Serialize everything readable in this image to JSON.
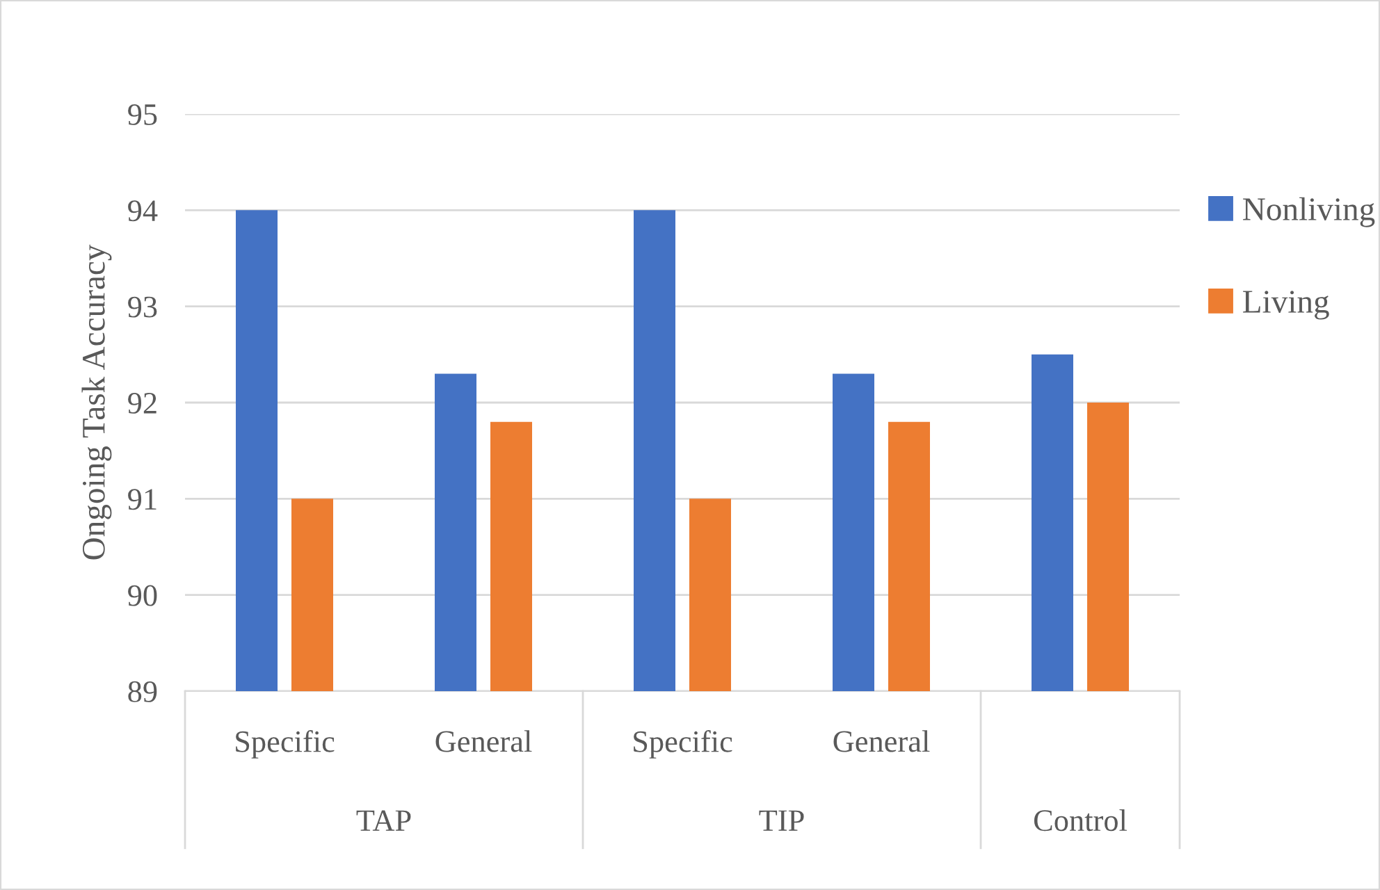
{
  "chart_data": {
    "type": "bar",
    "ylabel": "Ongoing Task Accuracy",
    "categories": [
      "Specific",
      "General",
      "Specific",
      "General",
      null
    ],
    "series": [
      {
        "name": "Nonliving",
        "color": "#4472c4",
        "values": [
          94,
          92.3,
          94,
          92.3,
          92.5
        ]
      },
      {
        "name": "Living",
        "color": "#ed7d31",
        "values": [
          91,
          91.8,
          91,
          91.8,
          92
        ]
      }
    ],
    "annotations": [
      "TAP",
      "TIP",
      "Control"
    ],
    "ylim": [
      89,
      95
    ],
    "yticks": [
      89,
      90,
      91,
      92,
      93,
      94,
      95
    ],
    "grid": "y",
    "legend": "right"
  }
}
